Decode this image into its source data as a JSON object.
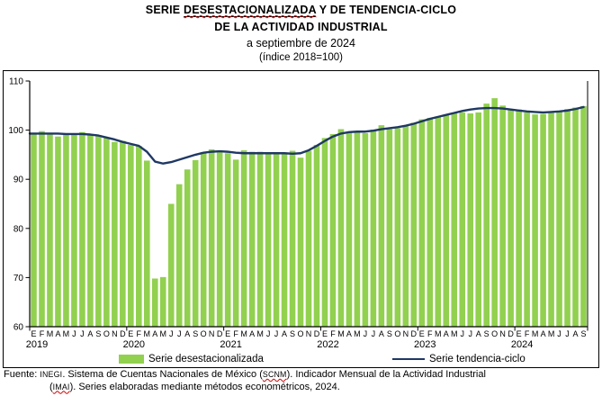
{
  "title": {
    "line1_pre": "SERIE ",
    "line1_underlined": "DESESTACIONALIZADA",
    "line1_post": " Y DE TENDENCIA-CICLO",
    "line2": "DE LA ACTIVIDAD INDUSTRIAL",
    "line3": "a septiembre de 2024",
    "line4": "(índice 2018=100)"
  },
  "legend": [
    {
      "label": "Serie desestacionalizada",
      "marker": "swatch",
      "color": "#92D050"
    },
    {
      "label": "Serie tendencia-ciclo",
      "marker": "line",
      "color": "#1F3864"
    }
  ],
  "footer": {
    "f1": "Fuente: ",
    "f2": "INEGI",
    "f3": ". Sistema de Cuentas Nacionales de México (",
    "f4": "SCNM",
    "f5": "). Indicador Mensual de la Actividad Industrial",
    "f6": "(",
    "f7": "IMAI",
    "f8": "). Series elaboradas mediante métodos econométricos, 2024."
  },
  "colors": {
    "bar": "#92D050",
    "trend": "#1F3864",
    "axis": "#000000",
    "squiggle": "#d40000"
  },
  "chart_data": {
    "type": "bar",
    "title": "Serie desestacionalizada y de tendencia-ciclo de la actividad industrial, a septiembre de 2024 (índice 2018=100)",
    "ylim": [
      60,
      110
    ],
    "y_ticks": [
      60,
      70,
      80,
      90,
      100,
      110
    ],
    "grid": false,
    "legend_position": "bottom",
    "years": [
      {
        "year": "2019",
        "months": [
          "E",
          "F",
          "M",
          "A",
          "M",
          "J",
          "J",
          "A",
          "S",
          "O",
          "N",
          "D"
        ],
        "desestacionalizada": [
          99.2,
          99.8,
          99.2,
          98.7,
          99.3,
          99.0,
          99.6,
          99.2,
          99.0,
          98.5,
          97.6,
          97.8
        ],
        "tendencia_ciclo": [
          99.3,
          99.3,
          99.3,
          99.3,
          99.2,
          99.2,
          99.2,
          99.1,
          98.9,
          98.5,
          98.1,
          97.6
        ]
      },
      {
        "year": "2020",
        "months": [
          "E",
          "F",
          "M",
          "A",
          "M",
          "J",
          "J",
          "A",
          "S",
          "O",
          "N",
          "D"
        ],
        "desestacionalizada": [
          97.0,
          96.8,
          93.8,
          69.8,
          70.1,
          85.0,
          89.0,
          92.0,
          93.9,
          95.5,
          96.1,
          95.8
        ],
        "tendencia_ciclo": [
          97.2,
          96.8,
          95.6,
          93.6,
          93.2,
          93.5,
          94.0,
          94.5,
          95.0,
          95.4,
          95.6,
          95.7
        ]
      },
      {
        "year": "2021",
        "months": [
          "E",
          "F",
          "M",
          "A",
          "M",
          "J",
          "J",
          "A",
          "S",
          "O",
          "N",
          "D"
        ],
        "desestacionalizada": [
          95.3,
          94.0,
          95.9,
          95.6,
          95.6,
          95.1,
          95.3,
          95.3,
          95.8,
          94.4,
          95.8,
          97.0
        ],
        "tendencia_ciclo": [
          95.6,
          95.4,
          95.3,
          95.3,
          95.3,
          95.3,
          95.3,
          95.3,
          95.2,
          95.3,
          95.9,
          96.8
        ]
      },
      {
        "year": "2022",
        "months": [
          "E",
          "F",
          "M",
          "A",
          "M",
          "J",
          "J",
          "A",
          "S",
          "O",
          "N",
          "D"
        ],
        "desestacionalizada": [
          98.4,
          99.2,
          100.2,
          99.6,
          99.6,
          99.4,
          100.1,
          101.0,
          100.2,
          100.4,
          100.8,
          101.5
        ],
        "tendencia_ciclo": [
          97.8,
          98.7,
          99.3,
          99.6,
          99.7,
          99.7,
          99.9,
          100.2,
          100.4,
          100.6,
          100.9,
          101.3
        ]
      },
      {
        "year": "2023",
        "months": [
          "E",
          "F",
          "M",
          "A",
          "M",
          "J",
          "J",
          "A",
          "S",
          "O",
          "N",
          "D"
        ],
        "desestacionalizada": [
          102.2,
          102.5,
          102.8,
          103.1,
          103.4,
          103.6,
          103.4,
          103.6,
          105.4,
          106.5,
          105.0,
          104.3
        ],
        "tendencia_ciclo": [
          101.8,
          102.3,
          102.7,
          103.1,
          103.5,
          103.9,
          104.2,
          104.4,
          104.5,
          104.5,
          104.4,
          104.2
        ]
      },
      {
        "year": "2024",
        "months": [
          "E",
          "F",
          "M",
          "A",
          "M",
          "J",
          "J",
          "A",
          "S"
        ],
        "desestacionalizada": [
          104.2,
          103.6,
          103.2,
          103.3,
          103.5,
          103.9,
          104.3,
          104.6,
          104.9
        ],
        "tendencia_ciclo": [
          104.0,
          103.8,
          103.7,
          103.6,
          103.7,
          103.8,
          104.0,
          104.3,
          104.7
        ]
      }
    ]
  }
}
